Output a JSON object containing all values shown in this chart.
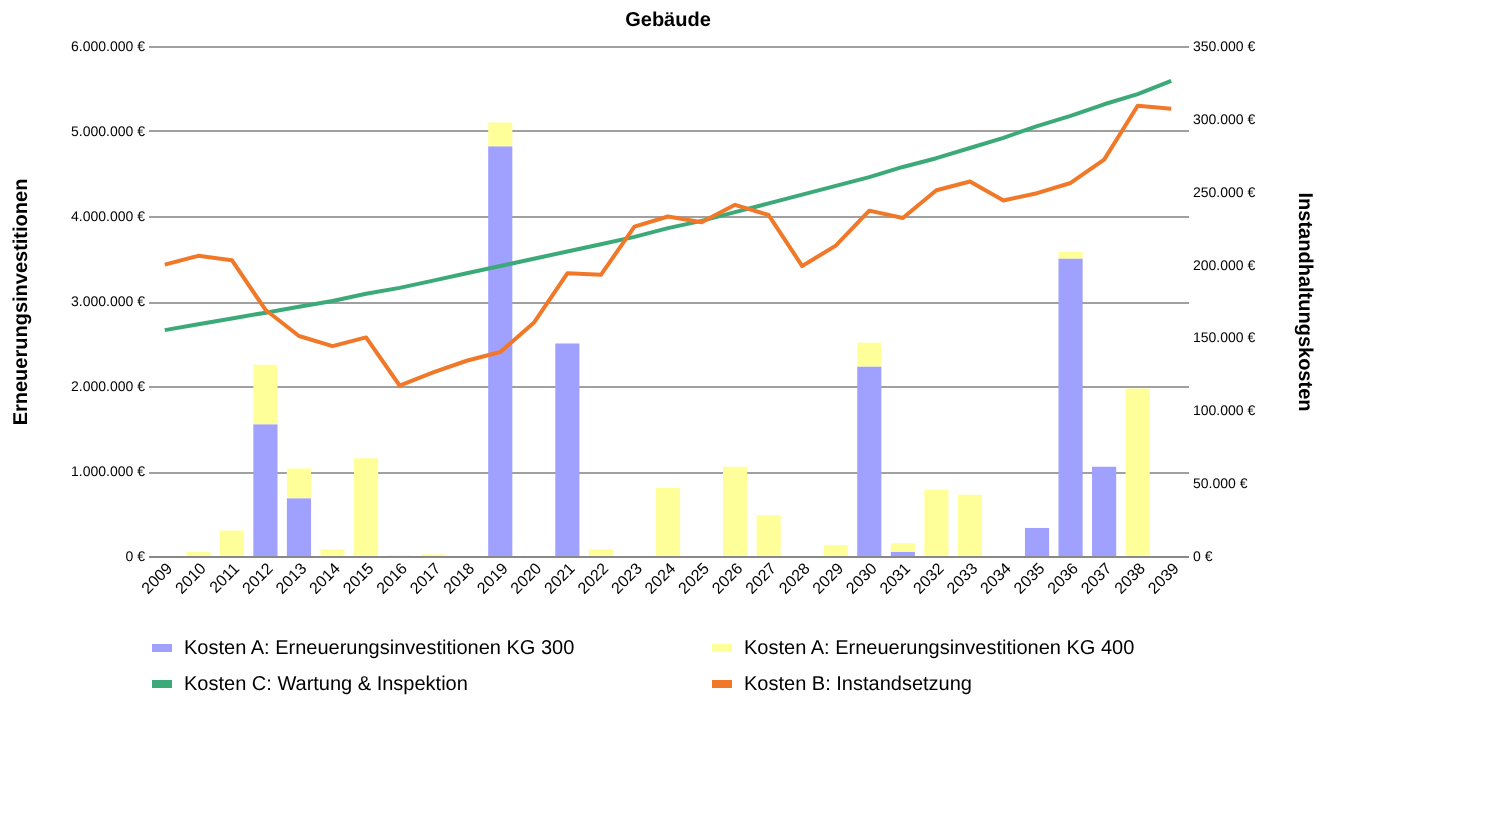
{
  "chart_data": {
    "type": "bar",
    "title": "Gebäude",
    "ylabel": "Erneuerungsinvestitionen",
    "y2label": "Instandhaltungskosten",
    "stacked": true,
    "grid": "y",
    "legend": "bottom",
    "categories": [
      "2009",
      "2010",
      "2011",
      "2012",
      "2013",
      "2014",
      "2015",
      "2016",
      "2017",
      "2018",
      "2019",
      "2020",
      "2021",
      "2022",
      "2023",
      "2024",
      "2025",
      "2026",
      "2027",
      "2028",
      "2029",
      "2030",
      "2031",
      "2032",
      "2033",
      "2034",
      "2035",
      "2036",
      "2037",
      "2038",
      "2039"
    ],
    "ylim": [
      0,
      6000000
    ],
    "yticks": [
      {
        "value": 0,
        "label": "0 €"
      },
      {
        "value": 1000000,
        "label": "1.000.000 €"
      },
      {
        "value": 2000000,
        "label": "2.000.000 €"
      },
      {
        "value": 3000000,
        "label": "3.000.000 €"
      },
      {
        "value": 4000000,
        "label": "4.000.000 €"
      },
      {
        "value": 5000000,
        "label": "5.000.000 €"
      },
      {
        "value": 6000000,
        "label": "6.000.000 €"
      }
    ],
    "y2lim": [
      0,
      350000
    ],
    "y2ticks": [
      {
        "value": 0,
        "label": "0 €"
      },
      {
        "value": 50000,
        "label": "50.000 €"
      },
      {
        "value": 100000,
        "label": "100.000 €"
      },
      {
        "value": 150000,
        "label": "150.000 €"
      },
      {
        "value": 200000,
        "label": "200.000 €"
      },
      {
        "value": 250000,
        "label": "250.000 €"
      },
      {
        "value": 300000,
        "label": "300.000 €"
      },
      {
        "value": 350000,
        "label": "350.000 €"
      }
    ],
    "series": [
      {
        "name": "Kosten A: Erneuerungsinvestitionen KG 300",
        "color": "#a0a0ff",
        "values": [
          0,
          0,
          0,
          1550000,
          680000,
          0,
          0,
          0,
          0,
          0,
          4820000,
          0,
          2500000,
          0,
          0,
          0,
          0,
          0,
          0,
          0,
          0,
          2230000,
          50000,
          0,
          0,
          0,
          330000,
          3500000,
          1050000,
          0,
          0
        ]
      },
      {
        "name": "Kosten A: Erneuerungsinvestitionen KG 400",
        "color": "#ffff99",
        "values": [
          0,
          50000,
          300000,
          700000,
          350000,
          80000,
          1150000,
          10000,
          20000,
          0,
          280000,
          0,
          0,
          80000,
          0,
          800000,
          0,
          1050000,
          480000,
          0,
          130000,
          280000,
          100000,
          780000,
          720000,
          0,
          0,
          80000,
          0,
          1970000,
          0
        ]
      },
      {
        "name": "Kosten C: Wartung & Inspektion",
        "type": "line",
        "axis": "y2",
        "color": "#3caa78",
        "values": [
          155000,
          159000,
          163000,
          167000,
          171000,
          175000,
          180000,
          184000,
          189000,
          194000,
          199000,
          204000,
          209000,
          214000,
          219000,
          225000,
          230000,
          236000,
          242000,
          248000,
          254000,
          260000,
          267000,
          273000,
          280000,
          287000,
          295000,
          302000,
          310000,
          317000,
          326000
        ]
      },
      {
        "name": "Kosten B: Instandsetzung",
        "type": "line",
        "axis": "y2",
        "color": "#f07828",
        "values": [
          200000,
          206000,
          203000,
          169000,
          151000,
          144000,
          150000,
          117000,
          126000,
          134000,
          140000,
          160000,
          194000,
          193000,
          226000,
          233000,
          229000,
          241000,
          234000,
          199000,
          213000,
          237000,
          232000,
          251000,
          257000,
          244000,
          249000,
          256000,
          272000,
          309000,
          307000
        ]
      }
    ]
  }
}
